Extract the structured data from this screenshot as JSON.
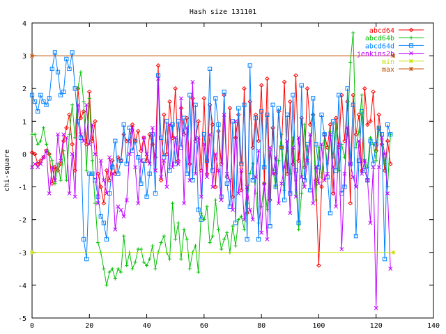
{
  "chart_data": {
    "type": "line",
    "title": "Hash size 131101",
    "xlabel": "",
    "ylabel": "chi-square",
    "xlim": [
      0,
      140
    ],
    "ylim": [
      -5,
      4
    ],
    "x_ticks": [
      0,
      20,
      40,
      60,
      80,
      100,
      120,
      140
    ],
    "y_ticks": [
      -5,
      -4,
      -3,
      -2,
      -1,
      0,
      1,
      2,
      3,
      4
    ],
    "x_tick_labels": [
      "0",
      "20",
      "40",
      "60",
      "80",
      "100",
      "120",
      "140"
    ],
    "y_tick_labels": [
      "-5",
      "-4",
      "-3",
      "-2",
      "-1",
      "0",
      "1",
      "2",
      "3",
      "4"
    ],
    "grid": false,
    "legend_position": "top-right",
    "series": [
      {
        "name": "abcd64",
        "color": "#ff0000",
        "marker": "diamond",
        "x": [
          0,
          1,
          2,
          3,
          4,
          5,
          6,
          7,
          8,
          9,
          10,
          11,
          12,
          13,
          14,
          15,
          16,
          17,
          18,
          19,
          20,
          21,
          22,
          23,
          24,
          25,
          26,
          27,
          28,
          29,
          30,
          31,
          32,
          33,
          34,
          35,
          36,
          37,
          38,
          39,
          40,
          41,
          42,
          43,
          44,
          45,
          46,
          47,
          48,
          49,
          50,
          51,
          52,
          53,
          54,
          55,
          56,
          57,
          58,
          59,
          60,
          61,
          62,
          63,
          64,
          65,
          66,
          67,
          68,
          69,
          70,
          71,
          72,
          73,
          74,
          75,
          76,
          77,
          78,
          79,
          80,
          81,
          82,
          83,
          84,
          85,
          86,
          87,
          88,
          89,
          90,
          91,
          92,
          93,
          94,
          95,
          96,
          97,
          98,
          99,
          100,
          101,
          102,
          103,
          104,
          105,
          106,
          107,
          108,
          109,
          110,
          111,
          112,
          113,
          114,
          115,
          116,
          117,
          118,
          119,
          120,
          121,
          122,
          123,
          124,
          125
        ],
        "values": [
          0.05,
          0.0,
          -0.3,
          -0.2,
          -0.1,
          0.1,
          0.0,
          -0.9,
          -0.4,
          -0.5,
          -0.3,
          0.4,
          0.8,
          1.2,
          0.3,
          -0.5,
          2.0,
          1.1,
          1.3,
          0.3,
          1.9,
          0.4,
          1.0,
          -0.6,
          -1.0,
          -1.5,
          -0.5,
          -0.8,
          -0.2,
          -0.6,
          -0.1,
          -0.2,
          0.6,
          0.4,
          0.4,
          0.9,
          0.4,
          0.7,
          0.1,
          0.5,
          -0.2,
          0.6,
          0.3,
          -0.1,
          2.7,
          -0.8,
          1.2,
          0.0,
          1.6,
          0.5,
          2.0,
          -0.2,
          1.4,
          0.6,
          1.1,
          -0.3,
          1.7,
          0.4,
          1.0,
          -0.5,
          1.7,
          -0.6,
          1.5,
          0.9,
          -1.0,
          0.7,
          -0.3,
          1.8,
          -0.7,
          1.4,
          -1.3,
          0.5,
          1.2,
          -1.1,
          2.0,
          -1.8,
          1.6,
          0.2,
          1.2,
          0.4,
          2.1,
          -0.9,
          2.3,
          -1.4,
          0.8,
          -0.6,
          1.3,
          0.2,
          2.2,
          -0.6,
          1.6,
          -0.3,
          2.4,
          -0.2,
          1.1,
          -0.4,
          2.0,
          0.9,
          1.2,
          -0.8,
          -3.4,
          -1.0,
          0.6,
          0.2,
          0.9,
          -1.2,
          1.1,
          0.2,
          1.8,
          0.4,
          1.6,
          -1.5,
          1.8,
          0.6,
          1.2,
          -0.5,
          2.0,
          0.9,
          1.0,
          1.9,
          0.1,
          1.2,
          0.3,
          -0.5,
          0.4,
          -0.3
        ]
      },
      {
        "name": "abcd64b",
        "color": "#00c000",
        "marker": "plus",
        "x": [
          0,
          1,
          2,
          3,
          4,
          5,
          6,
          7,
          8,
          9,
          10,
          11,
          12,
          13,
          14,
          15,
          16,
          17,
          18,
          19,
          20,
          21,
          22,
          23,
          24,
          25,
          26,
          27,
          28,
          29,
          30,
          31,
          32,
          33,
          34,
          35,
          36,
          37,
          38,
          39,
          40,
          41,
          42,
          43,
          44,
          45,
          46,
          47,
          48,
          49,
          50,
          51,
          52,
          53,
          54,
          55,
          56,
          57,
          58,
          59,
          60,
          61,
          62,
          63,
          64,
          65,
          66,
          67,
          68,
          69,
          70,
          71,
          72,
          73,
          74,
          75,
          76,
          77,
          78,
          79,
          80,
          81,
          82,
          83,
          84,
          85,
          86,
          87,
          88,
          89,
          90,
          91,
          92,
          93,
          94,
          95,
          96,
          97,
          98,
          99,
          100,
          101,
          102,
          103,
          104,
          105,
          106,
          107,
          108,
          109,
          110,
          111,
          112,
          113,
          114,
          115,
          116,
          117,
          118,
          119,
          120,
          121,
          122,
          123,
          124,
          125
        ],
        "values": [
          0.6,
          0.6,
          0.3,
          0.4,
          0.8,
          0.3,
          0.0,
          -0.2,
          -0.9,
          -0.3,
          -0.8,
          0.1,
          -0.8,
          0.6,
          1.5,
          0.5,
          2.0,
          2.5,
          1.6,
          -0.5,
          1.7,
          -0.2,
          -1.5,
          -2.7,
          -3.0,
          -3.5,
          -4.0,
          -3.6,
          -3.5,
          -3.8,
          -3.5,
          -3.6,
          -2.5,
          -3.4,
          -3.0,
          -3.5,
          -3.3,
          -2.9,
          -2.9,
          -3.3,
          -3.4,
          -3.2,
          -2.8,
          -3.5,
          -3.0,
          -2.7,
          -2.5,
          -3.0,
          -3.2,
          -1.5,
          -2.6,
          -2.1,
          -3.2,
          -2.3,
          -2.6,
          -3.5,
          -3.0,
          -2.8,
          -3.6,
          -1.8,
          -2.0,
          -1.6,
          -2.7,
          -2.5,
          -1.4,
          -2.3,
          -2.9,
          -2.6,
          -2.4,
          -3.0,
          -2.2,
          -2.8,
          -2.0,
          -1.9,
          -2.3,
          -1.5,
          -0.6,
          -0.3,
          -1.2,
          -2.1,
          -1.6,
          -0.9,
          -1.7,
          0.1,
          -0.5,
          -1.0,
          -0.2,
          0.6,
          -1.1,
          0.2,
          -0.6,
          0.5,
          -0.8,
          -2.3,
          -1.2,
          0.9,
          -0.3,
          0.4,
          1.2,
          -1.4,
          0.2,
          -0.7,
          0.4,
          -0.3,
          0.7,
          -0.1,
          0.9,
          -0.5,
          0.3,
          -0.1,
          0.6,
          2.8,
          3.7,
          0.2,
          0.7,
          1.8,
          -0.2,
          -0.4,
          0.5,
          0.3,
          -0.2,
          0.8,
          0.4,
          -0.3,
          -1.0,
          0.6
        ]
      },
      {
        "name": "abcd64d",
        "color": "#0080ff",
        "marker": "square",
        "x": [
          0,
          1,
          2,
          3,
          4,
          5,
          6,
          7,
          8,
          9,
          10,
          11,
          12,
          13,
          14,
          15,
          16,
          17,
          18,
          19,
          20,
          21,
          22,
          23,
          24,
          25,
          26,
          27,
          28,
          29,
          30,
          31,
          32,
          33,
          34,
          35,
          36,
          37,
          38,
          39,
          40,
          41,
          42,
          43,
          44,
          45,
          46,
          47,
          48,
          49,
          50,
          51,
          52,
          53,
          54,
          55,
          56,
          57,
          58,
          59,
          60,
          61,
          62,
          63,
          64,
          65,
          66,
          67,
          68,
          69,
          70,
          71,
          72,
          73,
          74,
          75,
          76,
          77,
          78,
          79,
          80,
          81,
          82,
          83,
          84,
          85,
          86,
          87,
          88,
          89,
          90,
          91,
          92,
          93,
          94,
          95,
          96,
          97,
          98,
          99,
          100,
          101,
          102,
          103,
          104,
          105,
          106,
          107,
          108,
          109,
          110,
          111,
          112,
          113,
          114,
          115,
          116,
          117,
          118,
          119,
          120,
          121,
          122,
          123,
          124,
          125
        ],
        "values": [
          1.8,
          1.6,
          1.3,
          1.8,
          1.6,
          1.5,
          1.7,
          2.6,
          3.1,
          2.5,
          1.8,
          1.9,
          2.9,
          2.6,
          3.1,
          2.0,
          1.0,
          0.5,
          -2.6,
          -3.2,
          -0.6,
          -0.6,
          -0.8,
          -1.3,
          -1.9,
          -2.1,
          -2.6,
          -1.2,
          -0.4,
          0.4,
          -0.6,
          -0.2,
          0.9,
          -0.3,
          0.8,
          0.1,
          0.4,
          -0.1,
          -0.9,
          -0.2,
          -1.3,
          -0.6,
          0.6,
          -1.2,
          2.4,
          0.5,
          -0.1,
          1.0,
          -0.5,
          0.9,
          -0.3,
          1.0,
          0.2,
          1.1,
          -0.6,
          1.8,
          -0.8,
          1.5,
          -1.7,
          -2.0,
          0.6,
          -0.2,
          2.6,
          -0.5,
          1.7,
          0.9,
          -1.3,
          1.9,
          -0.9,
          -1.6,
          1.0,
          -2.1,
          1.4,
          -0.3,
          1.5,
          -2.6,
          2.7,
          -0.8,
          1.1,
          -2.6,
          1.3,
          -0.4,
          1.2,
          -2.2,
          1.5,
          -1.0,
          1.4,
          0.2,
          -1.4,
          1.2,
          -1.2,
          1.8,
          -0.5,
          -2.1,
          2.1,
          -0.8,
          0.3,
          -1.1,
          1.7,
          0.3,
          -0.4,
          1.2,
          0.6,
          -0.7,
          -1.8,
          1.0,
          -0.5,
          1.8,
          -1.2,
          -1.0,
          2.0,
          -0.3,
          1.5,
          -2.5,
          -0.2,
          1.3,
          -0.5,
          -0.8,
          0.4,
          -0.3,
          0.3,
          0.8,
          0.6,
          -3.2,
          0.9,
          0.6
        ]
      },
      {
        "name": "jenkins2b",
        "color": "#c000ff",
        "marker": "cross",
        "x": [
          0,
          1,
          2,
          3,
          4,
          5,
          6,
          7,
          8,
          9,
          10,
          11,
          12,
          13,
          14,
          15,
          16,
          17,
          18,
          19,
          20,
          21,
          22,
          23,
          24,
          25,
          26,
          27,
          28,
          29,
          30,
          31,
          32,
          33,
          34,
          35,
          36,
          37,
          38,
          39,
          40,
          41,
          42,
          43,
          44,
          45,
          46,
          47,
          48,
          49,
          50,
          51,
          52,
          53,
          54,
          55,
          56,
          57,
          58,
          59,
          60,
          61,
          62,
          63,
          64,
          65,
          66,
          67,
          68,
          69,
          70,
          71,
          72,
          73,
          74,
          75,
          76,
          77,
          78,
          79,
          80,
          81,
          82,
          83,
          84,
          85,
          86,
          87,
          88,
          89,
          90,
          91,
          92,
          93,
          94,
          95,
          96,
          97,
          98,
          99,
          100,
          101,
          102,
          103,
          104,
          105,
          106,
          107,
          108,
          109,
          110,
          111,
          112,
          113,
          114,
          115,
          116,
          117,
          118,
          119,
          120,
          121,
          122,
          123,
          124,
          125
        ],
        "values": [
          -0.4,
          -0.3,
          -0.4,
          -0.3,
          -0.1,
          0.1,
          -1.2,
          -0.4,
          -0.8,
          0.6,
          -0.2,
          0.6,
          0.5,
          -1.2,
          0.0,
          -1.3,
          1.5,
          0.6,
          0.4,
          1.5,
          0.3,
          0.9,
          0.0,
          -1.5,
          -0.2,
          -0.8,
          -1.2,
          -0.1,
          -0.6,
          -2.3,
          -1.6,
          -1.7,
          -1.9,
          -1.4,
          0.0,
          0.8,
          -0.4,
          -1.5,
          -0.2,
          0.5,
          0.0,
          -0.3,
          0.8,
          -0.5,
          2.3,
          -0.7,
          -0.2,
          -1.0,
          0.9,
          -0.4,
          0.5,
          -0.3,
          1.7,
          -1.5,
          0.8,
          -0.8,
          2.2,
          -0.6,
          0.5,
          -1.3,
          0.3,
          -0.7,
          0.6,
          -1.0,
          0.0,
          -0.5,
          -1.4,
          1.2,
          -0.6,
          -0.8,
          -1.7,
          1.0,
          -1.2,
          -0.5,
          -2.0,
          -1.0,
          -1.7,
          -2.0,
          -0.7,
          0.1,
          -2.4,
          -0.9,
          -2.6,
          0.2,
          -0.6,
          -0.1,
          -1.5,
          -0.9,
          -0.4,
          0.4,
          -1.8,
          0.2,
          -1.3,
          0.5,
          -0.7,
          -1.0,
          -0.2,
          0.6,
          -1.5,
          -0.4,
          -0.9,
          0.3,
          -0.8,
          -0.6,
          0.6,
          -0.4,
          -1.6,
          0.3,
          -2.9,
          -0.6,
          0.8,
          -0.3,
          -0.7,
          -1.0,
          0.4,
          -0.6,
          -0.2,
          -0.8,
          -2.1,
          -0.4,
          -4.7,
          -0.4,
          0.5,
          0.0,
          -1.2,
          -3.5
        ]
      },
      {
        "name": "min",
        "color": "#c8e000",
        "marker": "star",
        "x": [
          0,
          126
        ],
        "values": [
          -3.0,
          -3.0
        ]
      },
      {
        "name": "max",
        "color": "#c05000",
        "marker": "asterisk",
        "x": [
          0,
          126
        ],
        "values": [
          3.0,
          3.0
        ]
      }
    ]
  }
}
